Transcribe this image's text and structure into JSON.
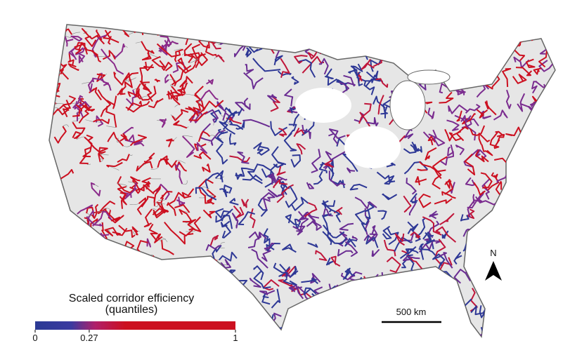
{
  "legend": {
    "title": "Scaled corridor efficiency",
    "subtitle": "(quantiles)",
    "range": [
      0,
      1
    ],
    "ticks": [
      0,
      0.27,
      1
    ]
  },
  "scale_bar": {
    "label": "500 km"
  },
  "north_arrow": {
    "label": "N"
  }
}
